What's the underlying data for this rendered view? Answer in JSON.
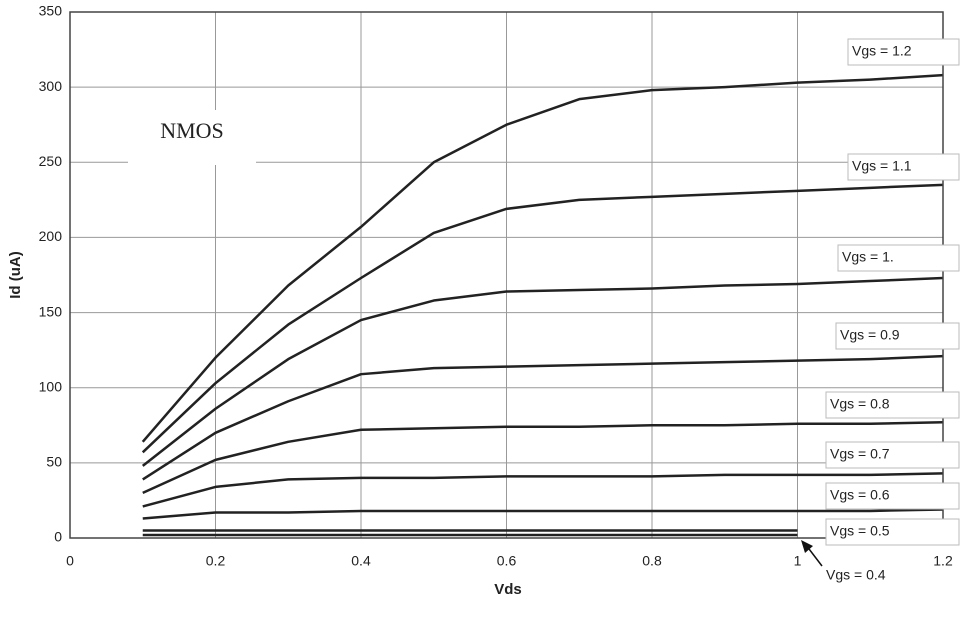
{
  "chart_data": {
    "type": "line",
    "annotation": "NMOS",
    "xlabel": "Vds",
    "ylabel": "Id (uA)",
    "x": [
      0.1,
      0.2,
      0.3,
      0.4,
      0.5,
      0.6,
      0.7,
      0.8,
      0.9,
      1.0,
      1.1,
      1.2
    ],
    "xlim": [
      0,
      1.2
    ],
    "xticks": [
      0,
      0.2,
      0.4,
      0.6,
      0.8,
      1,
      1.2
    ],
    "ylim": [
      0,
      350
    ],
    "yticks": [
      0,
      50,
      100,
      150,
      200,
      250,
      300,
      350
    ],
    "grid": true,
    "series": [
      {
        "name": "Vgs = 1.2",
        "color": "#222222",
        "values": [
          64,
          120,
          168,
          207,
          250,
          275,
          292,
          298,
          300,
          303,
          305,
          308
        ]
      },
      {
        "name": "Vgs = 1.1",
        "color": "#222222",
        "values": [
          57,
          103,
          142,
          173,
          203,
          219,
          225,
          227,
          229,
          231,
          233,
          235
        ]
      },
      {
        "name": "Vgs = 1.",
        "color": "#222222",
        "values": [
          48,
          86,
          119,
          145,
          158,
          164,
          165,
          166,
          168,
          169,
          171,
          173
        ]
      },
      {
        "name": "Vgs = 0.9",
        "color": "#222222",
        "values": [
          39,
          70,
          91,
          109,
          113,
          114,
          115,
          116,
          117,
          118,
          119,
          121
        ]
      },
      {
        "name": "Vgs = 0.8",
        "color": "#222222",
        "values": [
          30,
          52,
          64,
          72,
          73,
          74,
          74,
          75,
          75,
          76,
          76,
          77
        ]
      },
      {
        "name": "Vgs = 0.7",
        "color": "#222222",
        "values": [
          21,
          34,
          39,
          40,
          40,
          41,
          41,
          41,
          42,
          42,
          42,
          43
        ]
      },
      {
        "name": "Vgs = 0.6",
        "color": "#222222",
        "values": [
          13,
          17,
          17,
          18,
          18,
          18,
          18,
          18,
          18,
          18,
          18,
          19
        ]
      },
      {
        "name": "Vgs = 0.5",
        "color": "#222222",
        "values": [
          5,
          5,
          5,
          5,
          5,
          5,
          5,
          5,
          5,
          5,
          null,
          null
        ]
      },
      {
        "name": "Vgs = 0.4",
        "color": "#222222",
        "values": [
          2,
          2,
          2,
          2,
          2,
          2,
          2,
          2,
          2,
          2,
          null,
          null
        ]
      }
    ]
  }
}
